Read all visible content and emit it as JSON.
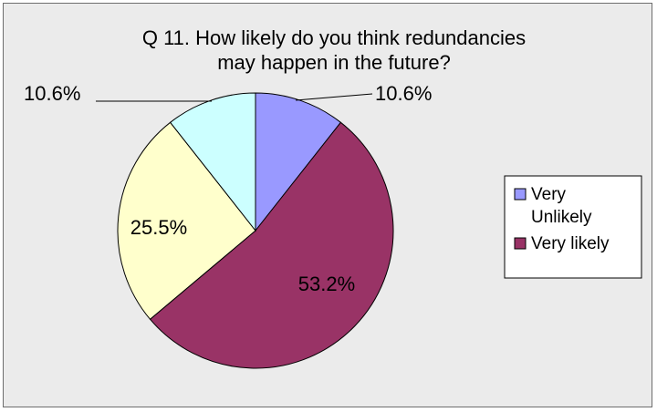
{
  "chart_data": {
    "type": "pie",
    "title_lines": [
      "Q 11. How likely do you think redundancies",
      "may happen in the future?"
    ],
    "slices": [
      {
        "label": "Very Unlikely",
        "value": 10.6,
        "display": "10.6%",
        "color": "#9999ff"
      },
      {
        "label": "Very likely",
        "value": 53.2,
        "display": "53.2%",
        "color": "#993366"
      },
      {
        "label": "",
        "value": 25.5,
        "display": "25.5%",
        "color": "#ffffcc"
      },
      {
        "label": "",
        "value": 10.6,
        "display": "10.6%",
        "color": "#ccffff"
      }
    ],
    "legend": {
      "placement": "right",
      "entries": [
        {
          "lines": [
            "Very",
            "Unlikely"
          ],
          "color": "#9999ff"
        },
        {
          "lines": [
            "Very likely"
          ],
          "color": "#993366"
        }
      ]
    },
    "background_color": "#ebebeb"
  }
}
